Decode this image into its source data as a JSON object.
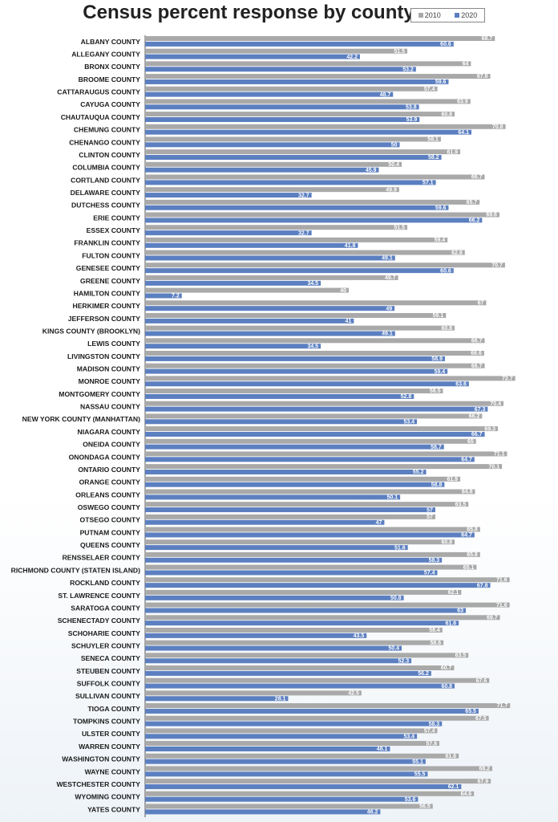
{
  "chart_data": {
    "type": "bar",
    "title": "Census percent response by county",
    "orientation": "horizontal",
    "xlim": [
      0,
      100
    ],
    "grid": false,
    "legend_position": "top-right",
    "colors": {
      "2010": "#a9a9a9",
      "2020": "#5b7fc0"
    },
    "categories": [
      "ALBANY COUNTY",
      "ALLEGANY COUNTY",
      "BRONX COUNTY",
      "BROOME COUNTY",
      "CATTARAUGUS COUNTY",
      "CAYUGA COUNTY",
      "CHAUTAUQUA COUNTY",
      "CHEMUNG COUNTY",
      "CHENANGO COUNTY",
      "CLINTON COUNTY",
      "COLUMBIA COUNTY",
      "CORTLAND COUNTY",
      "DELAWARE COUNTY",
      "DUTCHESS COUNTY",
      "ERIE COUNTY",
      "ESSEX COUNTY",
      "FRANKLIN COUNTY",
      "FULTON COUNTY",
      "GENESEE COUNTY",
      "GREENE COUNTY",
      "HAMILTON COUNTY",
      "HERKIMER COUNTY",
      "JEFFERSON COUNTY",
      "KINGS COUNTY (BROOKLYN)",
      "LEWIS COUNTY",
      "LIVINGSTON COUNTY",
      "MADISON COUNTY",
      "MONROE COUNTY",
      "MONTGOMERY COUNTY",
      "NASSAU COUNTY",
      "NEW YORK COUNTY (MANHATTAN)",
      "NIAGARA COUNTY",
      "ONEIDA COUNTY",
      "ONONDAGA COUNTY",
      "ONTARIO COUNTY",
      "ORANGE COUNTY",
      "ORLEANS COUNTY",
      "OSWEGO COUNTY",
      "OTSEGO COUNTY",
      "PUTNAM COUNTY",
      "QUEENS COUNTY",
      "RENSSELAER COUNTY",
      "RICHMOND COUNTY (STATEN ISLAND)",
      "ROCKLAND COUNTY",
      "ST. LAWRENCE COUNTY",
      "SARATOGA COUNTY",
      "SCHENECTADY COUNTY",
      "SCHOHARIE COUNTY",
      "SCHUYLER COUNTY",
      "SENECA COUNTY",
      "STEUBEN COUNTY",
      "SUFFOLK COUNTY",
      "SULLIVAN COUNTY",
      "TIOGA COUNTY",
      "TOMPKINS COUNTY",
      "ULSTER COUNTY",
      "WARREN COUNTY",
      "WASHINGTON COUNTY",
      "WAYNE COUNTY",
      "WESTCHESTER COUNTY",
      "WYOMING COUNTY",
      "YATES COUNTY"
    ],
    "series": [
      {
        "name": "2010",
        "values": [
          68.7,
          51.5,
          64,
          67.8,
          57.4,
          63.9,
          60.8,
          70.8,
          58.1,
          61.9,
          50.4,
          66.7,
          49.9,
          65.7,
          69.6,
          51.5,
          59.4,
          62.8,
          70.7,
          49.7,
          40,
          67,
          59.1,
          60.8,
          66.7,
          66.6,
          66.7,
          72.7,
          58.5,
          70.4,
          66.2,
          69.3,
          65,
          71.1,
          70.1,
          61.9,
          64.8,
          63.5,
          57,
          65.8,
          60.8,
          65.8,
          65.1,
          71.6,
          62.1,
          71.6,
          69.7,
          58.4,
          58.6,
          63.5,
          60.7,
          67.6,
          42.5,
          71.7,
          67.5,
          57.4,
          57.8,
          61.6,
          68.2,
          67.9,
          64.6,
          56.5
        ]
      },
      {
        "name": "2020",
        "values": [
          60.6,
          42.2,
          53.2,
          59.6,
          48.7,
          53.8,
          53.9,
          64.1,
          50,
          58.2,
          45.9,
          57.1,
          32.7,
          59.6,
          66.2,
          32.7,
          41.8,
          49.1,
          60.6,
          34.5,
          7.2,
          49,
          41,
          49.1,
          34.5,
          58.9,
          59.4,
          63.6,
          52.8,
          67.3,
          53.4,
          66.7,
          58.7,
          64.7,
          55.2,
          58.8,
          50.1,
          57,
          47,
          64.7,
          51.6,
          58.3,
          57.4,
          67.8,
          50.8,
          63,
          61.6,
          43.5,
          50.4,
          52.3,
          56.2,
          60.8,
          28.1,
          65.5,
          58.3,
          53.4,
          48.1,
          55.1,
          55.5,
          62.1,
          53.6,
          46.2
        ]
      }
    ]
  }
}
